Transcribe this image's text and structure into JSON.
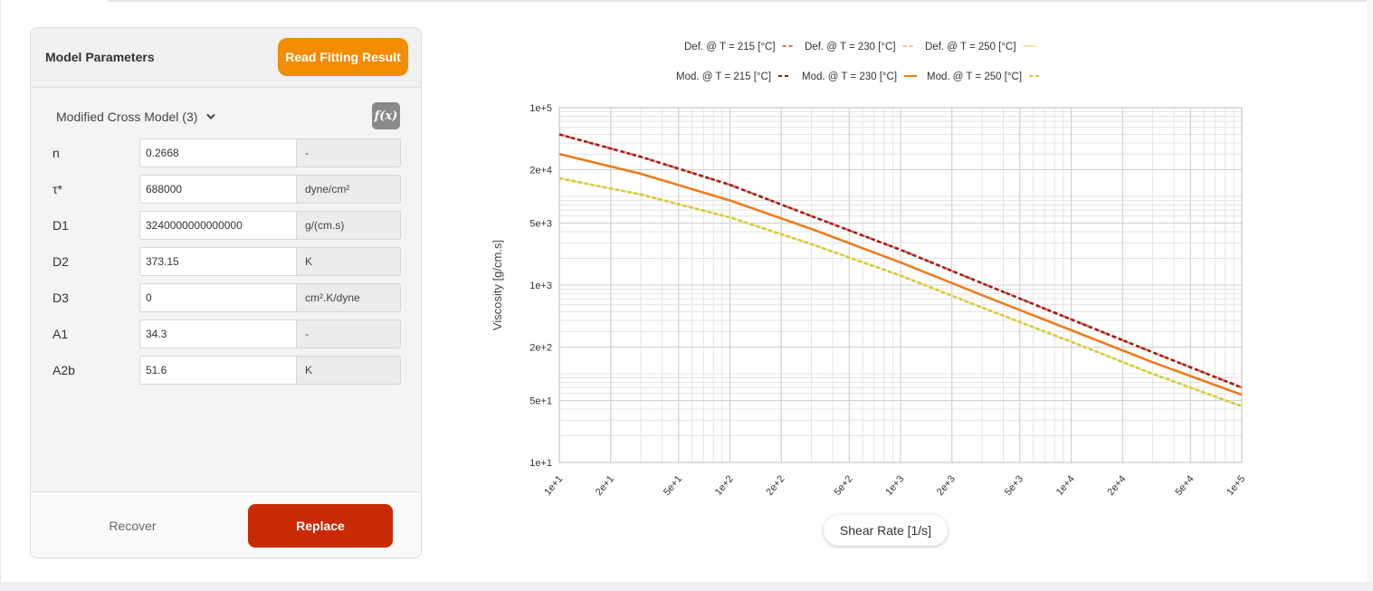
{
  "panel": {
    "title": "Model Parameters",
    "read_button": "Read Fitting Result",
    "model_select": "Modified Cross Model (3)",
    "fx_button": "f(x)",
    "params": [
      {
        "label": "n",
        "value": "0.2668",
        "unit": "-"
      },
      {
        "label": "τ*",
        "value": "688000",
        "unit": "dyne/cm²"
      },
      {
        "label": "D1",
        "value": "3240000000000000",
        "unit": "g/(cm.s)"
      },
      {
        "label": "D2",
        "value": "373.15",
        "unit": "K"
      },
      {
        "label": "D3",
        "value": "0",
        "unit": "cm².K/dyne"
      },
      {
        "label": "A1",
        "value": "34.3",
        "unit": "-"
      },
      {
        "label": "A2b",
        "value": "51.6",
        "unit": "K"
      }
    ],
    "recover_button": "Recover",
    "replace_button": "Replace"
  },
  "chart_data": {
    "type": "line",
    "xlabel": "Shear Rate [1/s]",
    "ylabel": "Viscosity [g/cm.s]",
    "xscale": "log",
    "yscale": "log",
    "xlim": [
      10,
      100000
    ],
    "ylim": [
      10,
      100000
    ],
    "grid": true,
    "legend_position": "top",
    "xticks": [
      "1e+1",
      "2e+1",
      "5e+1",
      "1e+2",
      "2e+2",
      "5e+2",
      "1e+3",
      "2e+3",
      "5e+3",
      "1e+4",
      "2e+4",
      "5e+4",
      "1e+5"
    ],
    "yticks": [
      "1e+1",
      "5e+1",
      "2e+2",
      "1e+3",
      "5e+3",
      "2e+4",
      "1e+5"
    ],
    "x": [
      10,
      30,
      100,
      300,
      1000,
      3000,
      10000,
      30000,
      100000
    ],
    "series": [
      {
        "name": "Def. @ T = 215 [°C]",
        "color": "#e06a54",
        "dash": "dashed",
        "values": [
          50000,
          28000,
          13500,
          6000,
          2500,
          1050,
          410,
          175,
          70
        ]
      },
      {
        "name": "Def. @ T = 230 [°C]",
        "color": "#f6c08a",
        "dash": "dashed",
        "values": [
          30000,
          18000,
          9000,
          4300,
          1800,
          770,
          310,
          135,
          58
        ]
      },
      {
        "name": "Def. @ T = 250 [°C]",
        "color": "#f7e3a0",
        "dash": "solid",
        "values": [
          16000,
          10500,
          5800,
          2900,
          1280,
          560,
          230,
          100,
          43
        ]
      },
      {
        "name": "Mod. @ T = 215 [°C]",
        "color": "#9b1b12",
        "dash": "dashed",
        "values": [
          50000,
          28000,
          13500,
          6000,
          2500,
          1050,
          410,
          175,
          70
        ]
      },
      {
        "name": "Mod. @ T = 230 [°C]",
        "color": "#f07a19",
        "dash": "solid",
        "values": [
          30000,
          18000,
          9000,
          4300,
          1800,
          770,
          310,
          135,
          58
        ]
      },
      {
        "name": "Mod. @ T = 250 [°C]",
        "color": "#c9cd3a",
        "dash": "dashed",
        "values": [
          16000,
          10500,
          5800,
          2900,
          1280,
          560,
          230,
          100,
          43
        ]
      }
    ]
  }
}
